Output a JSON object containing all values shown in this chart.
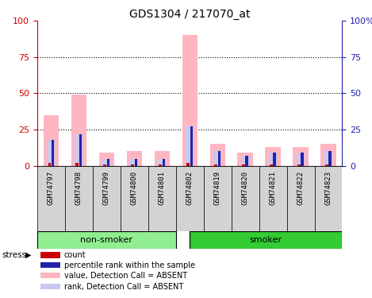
{
  "title": "GDS1304 / 217070_at",
  "samples": [
    "GSM74797",
    "GSM74798",
    "GSM74799",
    "GSM74800",
    "GSM74801",
    "GSM74802",
    "GSM74819",
    "GSM74820",
    "GSM74821",
    "GSM74822",
    "GSM74823"
  ],
  "value_absent": [
    35,
    49,
    9,
    10,
    10,
    90,
    15,
    9,
    13,
    13,
    15
  ],
  "rank_absent": [
    18,
    22,
    5,
    5,
    5,
    27,
    10,
    7,
    9,
    9,
    10
  ],
  "count": [
    2,
    2,
    1,
    1,
    1,
    2,
    1,
    1,
    1,
    1,
    1
  ],
  "percentile_rank": [
    18,
    22,
    5,
    5,
    5,
    27,
    10,
    7,
    9,
    9,
    10
  ],
  "ylim": [
    0,
    100
  ],
  "yticks": [
    0,
    25,
    50,
    75,
    100
  ],
  "bar_color_absent_value": "#FFB6C1",
  "bar_color_absent_rank": "#C8C8F0",
  "bar_color_count": "#CC0000",
  "bar_color_pct_rank": "#2222AA",
  "non_smoker_color": "#90EE90",
  "smoker_color": "#33CC33",
  "left_axis_color": "#CC0000",
  "right_axis_color": "#2222AA",
  "background_color": "#ffffff",
  "grid_color": "black",
  "legend_items": [
    {
      "label": "count",
      "color": "#CC0000"
    },
    {
      "label": "percentile rank within the sample",
      "color": "#2222AA"
    },
    {
      "label": "value, Detection Call = ABSENT",
      "color": "#FFB6C1"
    },
    {
      "label": "rank, Detection Call = ABSENT",
      "color": "#C8C8F0"
    }
  ],
  "non_smoker_indices": [
    0,
    1,
    2,
    3,
    4
  ],
  "smoker_indices": [
    5,
    6,
    7,
    8,
    9,
    10
  ]
}
